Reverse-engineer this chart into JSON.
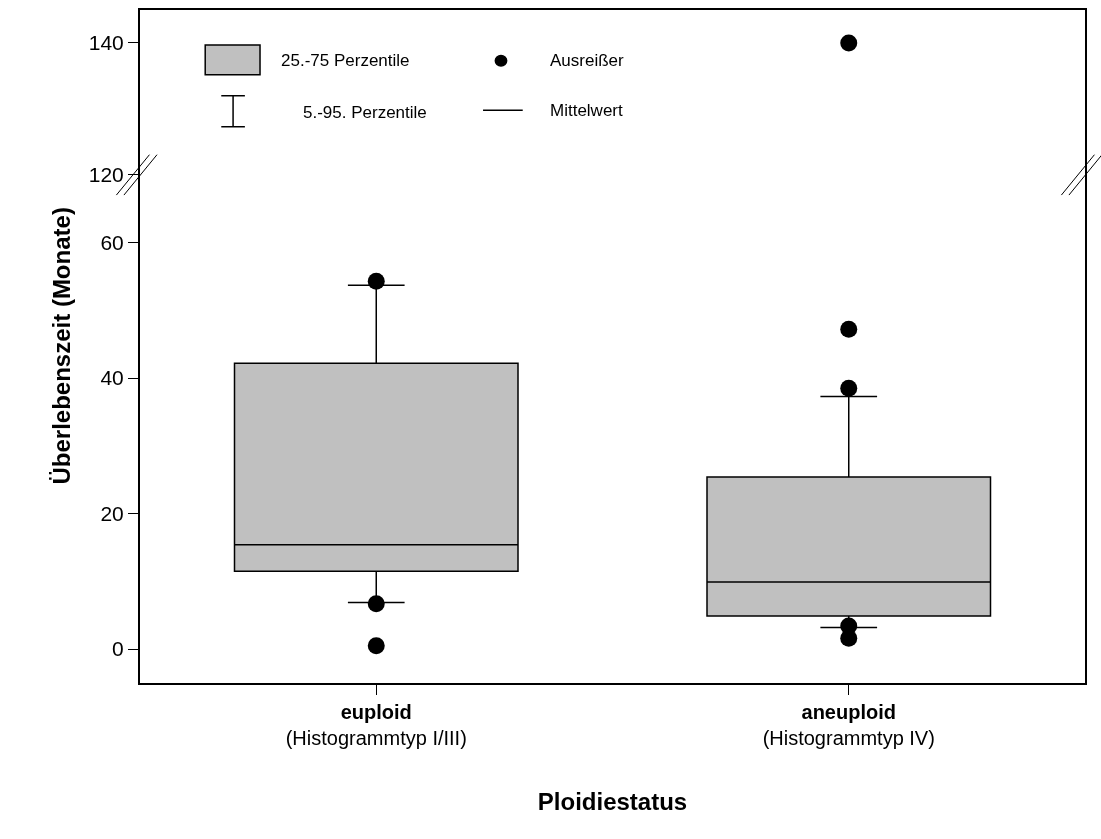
{
  "chart_data": [
    {
      "type": "scatter",
      "series": [
        {
          "color": "#000000",
          "values": [
            null,
            140
          ]
        }
      ],
      "ylim": [
        120,
        145
      ],
      "yticks": [
        120,
        140
      ],
      "tick_labels": "y",
      "marker": "circle",
      "annotations": [
        "25.-75 Perzentile",
        "5.-95. Perzentile",
        "Ausreißer",
        "Mittelwert"
      ]
    },
    {
      "type": "box",
      "categories": [
        "euploid\n(Histogrammtyp I/III)",
        "aneuploid\n(Histogrammtyp IV)"
      ],
      "xlabel": "Ploidiestatus",
      "ylabel": "Überlebenszeit (Monate)",
      "series": [
        {
          "color": "#c0c0c0",
          "boxes": [
            {
              "low": 6.9,
              "q1": 11.5,
              "median": 15.4,
              "q3": 42.2,
              "high": 53.7,
              "outliers": [
                54.3,
                6.7,
                0.5
              ]
            },
            {
              "low": 3.2,
              "q1": 4.9,
              "median": 9.9,
              "q3": 25.4,
              "high": 37.3,
              "outliers": [
                47.2,
                38.5,
                3.4,
                1.6
              ]
            }
          ]
        }
      ],
      "ylim": [
        -5,
        70
      ],
      "yticks": [
        0,
        20,
        40,
        60
      ],
      "marker": "circle"
    }
  ]
}
